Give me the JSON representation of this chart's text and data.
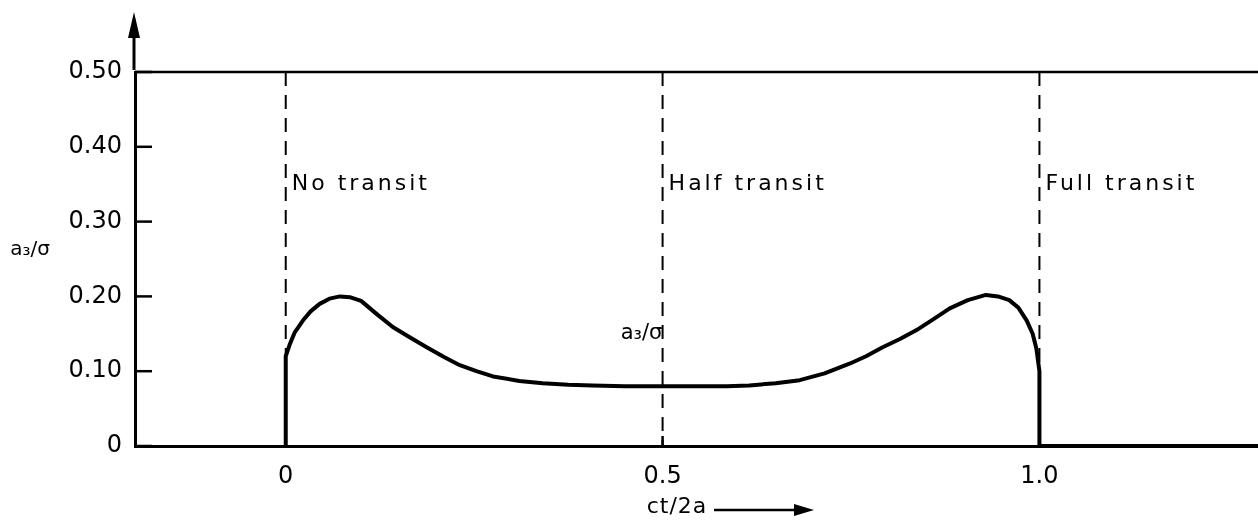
{
  "chart_data": {
    "type": "line",
    "xlabel": "ct/2a",
    "ylabel": "a₃/σ",
    "x": [
      0,
      0,
      0.005,
      0.012,
      0.023,
      0.033,
      0.045,
      0.058,
      0.072,
      0.085,
      0.1,
      0.12,
      0.142,
      0.165,
      0.187,
      0.21,
      0.231,
      0.253,
      0.275,
      0.31,
      0.341,
      0.375,
      0.407,
      0.45,
      0.5,
      0.55,
      0.585,
      0.615,
      0.65,
      0.682,
      0.715,
      0.748,
      0.77,
      0.792,
      0.815,
      0.837,
      0.86,
      0.881,
      0.905,
      0.929,
      0.945,
      0.96,
      0.972,
      0.983,
      0.991,
      0.996,
      1.0,
      1.0,
      1.29
    ],
    "values": [
      0,
      0.12,
      0.135,
      0.152,
      0.168,
      0.18,
      0.19,
      0.197,
      0.2,
      0.199,
      0.194,
      0.177,
      0.159,
      0.145,
      0.132,
      0.119,
      0.108,
      0.1,
      0.093,
      0.087,
      0.084,
      0.082,
      0.081,
      0.08,
      0.08,
      0.08,
      0.08,
      0.081,
      0.084,
      0.088,
      0.097,
      0.11,
      0.12,
      0.132,
      0.143,
      0.155,
      0.17,
      0.184,
      0.195,
      0.202,
      0.2,
      0.195,
      0.185,
      0.168,
      0.15,
      0.13,
      0.1,
      0,
      0
    ],
    "color": "#000000",
    "marker": "none",
    "legend": false,
    "grid": false,
    "xlim": [
      -0.2,
      1.29
    ],
    "xticks": [
      0,
      0.5,
      {
        "value": 1,
        "label": "1.0"
      }
    ],
    "ylim": [
      0,
      0.5
    ],
    "yticks": [
      0,
      {
        "value": 0.1,
        "label": "0.10"
      },
      {
        "value": 0.2,
        "label": "0.20"
      },
      {
        "value": 0.3,
        "label": "0.30"
      },
      {
        "value": 0.4,
        "label": "0.40"
      },
      {
        "value": 0.5,
        "label": "0.50"
      }
    ],
    "ref_lines": [
      {
        "axis": "x",
        "value": 0,
        "label": "No transit",
        "line_style": "dashed"
      },
      {
        "axis": "x",
        "value": 0.5,
        "label": "Half transit",
        "line_style": "dashed"
      },
      {
        "axis": "x",
        "value": 1,
        "label": "Full transit",
        "line_style": "dashed"
      }
    ],
    "annotations": [
      "a₃/σ"
    ]
  }
}
